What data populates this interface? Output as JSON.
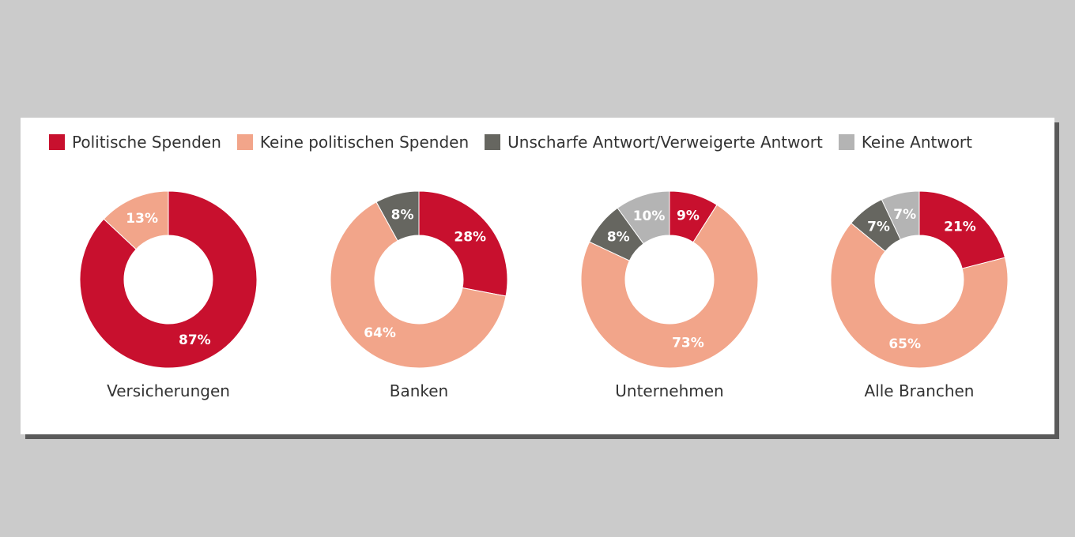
{
  "chart_data": {
    "type": "pie",
    "legend_position": "top",
    "series": [
      {
        "name": "Politische Spenden",
        "color": "#c8102e"
      },
      {
        "name": "Keine politischen Spenden",
        "color": "#f2a58a"
      },
      {
        "name": "Unscharfe Antwort/Verweigerte Antwort",
        "color": "#666660"
      },
      {
        "name": "Keine Antwort",
        "color": "#b4b4b4"
      }
    ],
    "charts": [
      {
        "category": "Versicherungen",
        "values": [
          87,
          13,
          0,
          0
        ],
        "labels": [
          "87%",
          "13%",
          "",
          ""
        ]
      },
      {
        "category": "Banken",
        "values": [
          28,
          64,
          8,
          0
        ],
        "labels": [
          "28%",
          "64%",
          "8%",
          ""
        ]
      },
      {
        "category": "Unternehmen",
        "values": [
          9,
          73,
          8,
          10
        ],
        "labels": [
          "9%",
          "73%",
          "8%",
          "10%"
        ]
      },
      {
        "category": "Alle Branchen",
        "values": [
          21,
          65,
          7,
          7
        ],
        "labels": [
          "21%",
          "65%",
          "7%",
          "7%"
        ]
      }
    ]
  }
}
